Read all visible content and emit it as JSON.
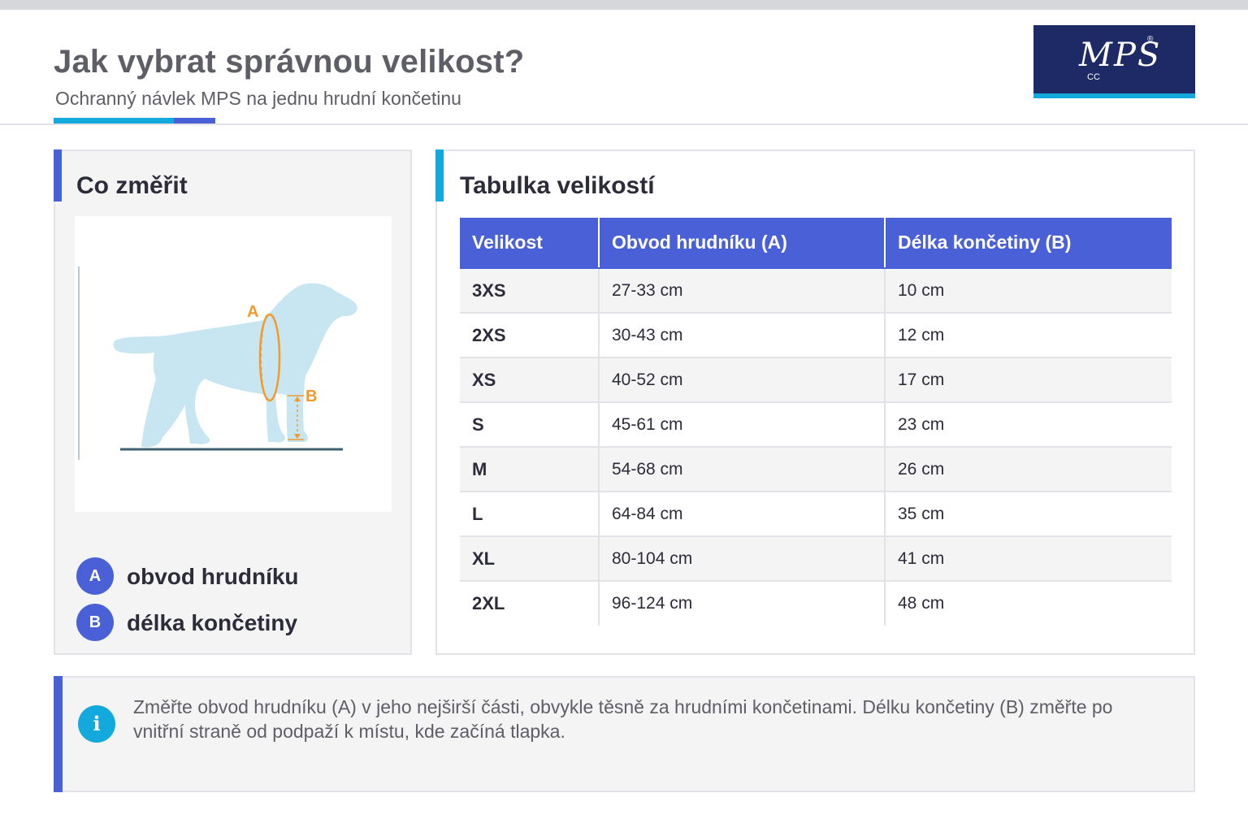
{
  "header": {
    "title": "Jak vybrat správnou velikost?",
    "subtitle": "Ochranný návlek MPS na jednu hrudní končetinu",
    "logo_text": "MPS",
    "logo_reg": "®",
    "logo_sub": "CC",
    "colors": {
      "accent_cyan": "#14a9dd",
      "accent_blue": "#4a60d6",
      "logo_bg": "#1e2a66"
    }
  },
  "measure_panel": {
    "title": "Co změřit",
    "diagram": {
      "label_a": "A",
      "label_b": "B"
    },
    "legend": [
      {
        "badge": "A",
        "label": "obvod hrudníku"
      },
      {
        "badge": "B",
        "label": "délka končetiny"
      }
    ]
  },
  "size_table": {
    "title": "Tabulka velikostí",
    "headers": [
      "Velikost",
      "Obvod hrudníku (A)",
      "Délka končetiny (B)"
    ],
    "rows": [
      [
        "3XS",
        "27-33 cm",
        "10 cm"
      ],
      [
        "2XS",
        "30-43 cm",
        "12 cm"
      ],
      [
        "XS",
        "40-52 cm",
        "17 cm"
      ],
      [
        "S",
        "45-61 cm",
        "23 cm"
      ],
      [
        "M",
        "54-68 cm",
        "26 cm"
      ],
      [
        "L",
        "64-84 cm",
        "35 cm"
      ],
      [
        "XL",
        "80-104 cm",
        "41 cm"
      ],
      [
        "2XL",
        "96-124 cm",
        "48 cm"
      ]
    ]
  },
  "info": {
    "icon": "info-icon",
    "text": "Změřte obvod hrudníku (A) v jeho nejširší části, obvykle těsně za hrudními končetinami. Délku končetiny (B) změřte po vnitřní straně od podpaží k místu, kde začíná tlapka."
  }
}
